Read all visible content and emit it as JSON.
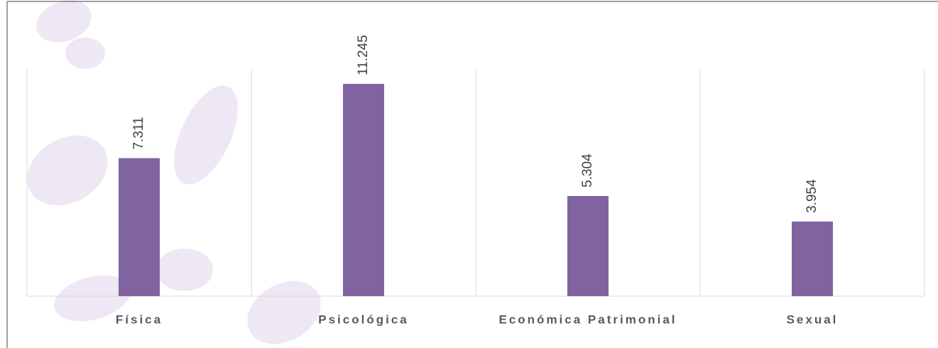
{
  "chart_data": {
    "type": "bar",
    "categories": [
      "Física",
      "Psicológica",
      "Económica Patrimonial",
      "Sexual"
    ],
    "values": [
      7311,
      11245,
      5304,
      3954
    ],
    "value_labels": [
      "7.311",
      "11.245",
      "5.304",
      "3.954"
    ],
    "color": "#8064a2",
    "ylim": [
      0,
      12000
    ]
  }
}
